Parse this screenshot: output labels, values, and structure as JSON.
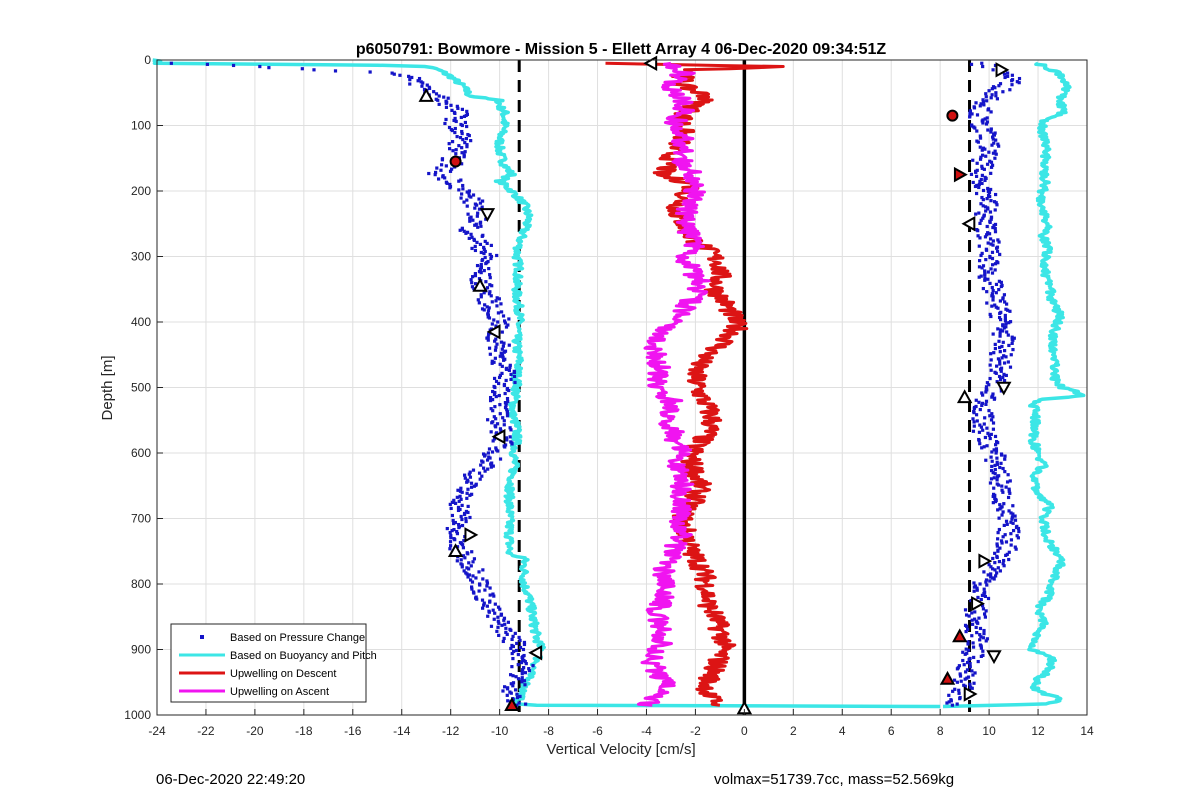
{
  "chart_data": {
    "type": "scatter",
    "title": "p6050791: Bowmore - Mission 5 - Ellett Array 4 06-Dec-2020 09:34:51Z",
    "xlabel": "Vertical Velocity [cm/s]",
    "ylabel": "Depth [m]",
    "xlim": [
      -24,
      14
    ],
    "ylim": [
      0,
      1000
    ],
    "y_reversed": true,
    "grid": true,
    "legend_position": "bottom-left",
    "xticks": [
      -24,
      -22,
      -20,
      -18,
      -16,
      -14,
      -12,
      -10,
      -8,
      -6,
      -4,
      -2,
      0,
      2,
      4,
      6,
      8,
      10,
      12,
      14
    ],
    "yticks": [
      0,
      100,
      200,
      300,
      400,
      500,
      600,
      700,
      800,
      900,
      1000
    ],
    "reference_lines": [
      {
        "x": -9.2,
        "style": "dashed",
        "color": "#000000"
      },
      {
        "x": 9.2,
        "style": "dashed",
        "color": "#000000"
      },
      {
        "x": 0,
        "style": "solid",
        "color": "#000000"
      }
    ],
    "series": [
      {
        "name": "Based on Pressure Change",
        "kind": "points",
        "color": "#1414C8",
        "branches": [
          {
            "depth": [
              5,
              10,
              20,
              30,
              45,
              60,
              80,
              100,
              120,
              140,
              160,
              175,
              185,
              200,
              220,
              240,
              260,
              280,
              300,
              320,
              340,
              360,
              380,
              400,
              420,
              440,
              460,
              480,
              500,
              520,
              540,
              560,
              580,
              600,
              620,
              640,
              660,
              680,
              700,
              720,
              740,
              760,
              780,
              800,
              820,
              840,
              860,
              880,
              900,
              920,
              940,
              960,
              975,
              985
            ],
            "velocity": [
              -23,
              -20,
              -14.5,
              -13.5,
              -13,
              -12.3,
              -11.7,
              -11.8,
              -11.5,
              -11.8,
              -12,
              -12.6,
              -11.8,
              -11.5,
              -11,
              -10.8,
              -11.2,
              -10.8,
              -10.5,
              -10.8,
              -10.8,
              -10.5,
              -10.3,
              -10,
              -10.2,
              -10,
              -9.9,
              -9.8,
              -9.8,
              -10,
              -10.1,
              -10,
              -9.8,
              -10.2,
              -10.5,
              -11.2,
              -11.5,
              -11.6,
              -11.6,
              -11.8,
              -11.8,
              -11.4,
              -11,
              -10.8,
              -10.6,
              -10.4,
              -10,
              -9.6,
              -9.1,
              -9,
              -9.2,
              -9.4,
              -9.5,
              -9.3
            ]
          },
          {
            "depth": [
              5,
              15,
              30,
              50,
              70,
              90,
              110,
              130,
              150,
              170,
              190,
              210,
              240,
              270,
              300,
              330,
              360,
              390,
              420,
              450,
              480,
              510,
              540,
              570,
              600,
              630,
              660,
              690,
              720,
              750,
              780,
              800,
              830,
              860,
              890,
              920,
              950,
              970,
              985
            ],
            "velocity": [
              9.5,
              10.5,
              11,
              10.3,
              9.8,
              9.5,
              9.8,
              10,
              9.8,
              9.6,
              9.8,
              10,
              9.8,
              10,
              10,
              10,
              10.2,
              10.5,
              10.6,
              10.5,
              10.4,
              10,
              9.7,
              9.8,
              10.2,
              10.4,
              10.5,
              10.6,
              10.8,
              10.7,
              10.2,
              9.8,
              9.5,
              9.4,
              9.5,
              9.2,
              9.0,
              8.8,
              8.5
            ]
          }
        ]
      },
      {
        "name": "Based on Buoyancy and Pitch",
        "kind": "line",
        "color": "#3CE6E6",
        "branches": [
          {
            "depth": [
              0,
              5,
              8,
              10,
              15,
              25,
              40,
              55,
              62,
              70,
              80,
              100,
              120,
              140,
              160,
              175,
              185,
              200,
              220,
              240,
              260,
              280,
              300,
              320,
              340,
              360,
              380,
              400,
              420,
              440,
              460,
              480,
              500,
              520,
              540,
              560,
              580,
              600,
              620,
              640,
              660,
              680,
              700,
              720,
              740,
              755,
              760,
              780,
              800,
              820,
              840,
              860,
              880,
              900,
              920,
              940,
              960,
              975,
              982,
              985,
              987
            ],
            "velocity": [
              -24,
              -24,
              -15,
              -13,
              -12.5,
              -12,
              -11.5,
              -11.2,
              -10,
              -10,
              -9.8,
              -9.8,
              -10,
              -10,
              -9.8,
              -9.5,
              -10,
              -9.5,
              -9,
              -8.8,
              -9,
              -9.2,
              -9.3,
              -9.2,
              -9.3,
              -9.3,
              -9.2,
              -9.2,
              -9.3,
              -9.3,
              -9.2,
              -9.3,
              -9.3,
              -9.4,
              -9.5,
              -9.3,
              -9.3,
              -9.4,
              -9.4,
              -9.5,
              -9.6,
              -9.6,
              -9.6,
              -9.6,
              -9.6,
              -9.6,
              -9,
              -9,
              -9,
              -8.8,
              -8.7,
              -8.6,
              -8.5,
              -8.3,
              -8.5,
              -8.8,
              -9,
              -9.2,
              -9.5,
              -8.5,
              8
            ]
          },
          {
            "depth": [
              987,
              983,
              975,
              965,
              955,
              945,
              930,
              915,
              900,
              880,
              860,
              840,
              820,
              800,
              780,
              760,
              740,
              720,
              700,
              680,
              660,
              640,
              620,
              600,
              580,
              560,
              540,
              525,
              518,
              512,
              500,
              490,
              470,
              450,
              430,
              410,
              390,
              370,
              350,
              330,
              310,
              290,
              270,
              250,
              230,
              210,
              190,
              170,
              150,
              130,
              110,
              95,
              80,
              60,
              40,
              20,
              5
            ],
            "velocity": [
              8,
              12.5,
              13,
              12,
              11.8,
              12,
              12.5,
              12.6,
              11.8,
              11.9,
              12.2,
              12,
              12.4,
              12.6,
              12.8,
              13,
              12.5,
              12.3,
              12.2,
              12.5,
              12,
              11.8,
              12.2,
              12,
              11.8,
              11.9,
              11.9,
              11.8,
              12.2,
              14,
              13,
              12.7,
              12.7,
              12.6,
              12.6,
              12.7,
              12.9,
              12.6,
              12.5,
              12.3,
              12.3,
              12.4,
              12.2,
              12.4,
              12.2,
              12.1,
              12.3,
              12.2,
              12.3,
              12.3,
              12.2,
              12.2,
              13,
              12.9,
              13.2,
              12.8,
              12
            ]
          }
        ]
      },
      {
        "name": "Upwelling on Descent",
        "kind": "line",
        "color": "#DC1414",
        "branches": [
          {
            "depth": [
              5,
              10,
              15,
              25,
              40,
              55,
              70,
              85,
              100,
              120,
              140,
              160,
              175,
              190,
              210,
              230,
              250,
              270,
              290,
              310,
              330,
              350,
              370,
              390,
              410,
              430,
              450,
              470,
              490,
              510,
              530,
              550,
              570,
              590,
              610,
              630,
              650,
              670,
              690,
              710,
              730,
              750,
              770,
              790,
              810,
              830,
              850,
              870,
              890,
              910,
              930,
              950,
              970,
              985
            ],
            "velocity": [
              -6,
              2,
              -2,
              -2.5,
              -2.5,
              -1.5,
              -2,
              -2.5,
              -2.5,
              -2.5,
              -3,
              -3,
              -3.5,
              -2,
              -2.5,
              -2.8,
              -2.5,
              -2.2,
              -1.5,
              -1,
              -1,
              -1.2,
              -0.8,
              -0.5,
              -0.3,
              -0.8,
              -1.5,
              -2,
              -2,
              -1.8,
              -1.5,
              -1.3,
              -1.5,
              -2,
              -2.2,
              -2,
              -1.8,
              -2,
              -2.5,
              -2.5,
              -2.3,
              -2.2,
              -1.8,
              -1.6,
              -1.5,
              -1.5,
              -1.2,
              -1,
              -0.8,
              -1,
              -1.2,
              -1.5,
              -1.5,
              -1
            ]
          }
        ]
      },
      {
        "name": "Upwelling on Ascent",
        "kind": "line",
        "color": "#F014F0",
        "branches": [
          {
            "depth": [
              985,
              970,
              955,
              940,
              920,
              900,
              880,
              860,
              840,
              820,
              800,
              780,
              760,
              740,
              720,
              700,
              680,
              660,
              640,
              620,
              600,
              580,
              560,
              540,
              520,
              500,
              480,
              460,
              440,
              420,
              400,
              380,
              360,
              340,
              320,
              300,
              280,
              260,
              240,
              220,
              200,
              180,
              160,
              140,
              120,
              100,
              80,
              60,
              40,
              20,
              5
            ],
            "velocity": [
              -4,
              -3.5,
              -3.2,
              -3.5,
              -3.8,
              -3.5,
              -3.3,
              -3.5,
              -3.6,
              -3.2,
              -3.2,
              -3.3,
              -3,
              -2.8,
              -2.5,
              -2.8,
              -2.5,
              -2.6,
              -2.5,
              -2.7,
              -2.5,
              -2.8,
              -3,
              -3.2,
              -3,
              -3.5,
              -3.5,
              -3.5,
              -3.8,
              -3.5,
              -3,
              -2.5,
              -2,
              -1.8,
              -2.2,
              -2.5,
              -2,
              -2.3,
              -2.5,
              -2.2,
              -2,
              -2,
              -2.5,
              -2.5,
              -2.5,
              -3,
              -2.5,
              -2.5,
              -3,
              -2.5,
              -3
            ]
          }
        ]
      }
    ],
    "marker_points": [
      {
        "x": -13,
        "depth": 55,
        "marker": "up-triangle"
      },
      {
        "x": -11.8,
        "depth": 155,
        "marker": "circle"
      },
      {
        "x": -10.5,
        "depth": 235,
        "marker": "down-triangle"
      },
      {
        "x": -10.8,
        "depth": 345,
        "marker": "up-triangle"
      },
      {
        "x": -10.2,
        "depth": 415,
        "marker": "left-triangle"
      },
      {
        "x": -10,
        "depth": 575,
        "marker": "left-triangle"
      },
      {
        "x": -11.2,
        "depth": 725,
        "marker": "right-triangle"
      },
      {
        "x": -11.8,
        "depth": 750,
        "marker": "up-triangle"
      },
      {
        "x": -8.5,
        "depth": 905,
        "marker": "left-triangle"
      },
      {
        "x": -9.5,
        "depth": 985,
        "marker": "filled-up-triangle"
      },
      {
        "x": -3.8,
        "depth": 5,
        "marker": "left-triangle"
      },
      {
        "x": 0,
        "depth": 990,
        "marker": "up-triangle"
      },
      {
        "x": 10.5,
        "depth": 15,
        "marker": "right-triangle"
      },
      {
        "x": 8.5,
        "depth": 85,
        "marker": "circle"
      },
      {
        "x": 8.8,
        "depth": 175,
        "marker": "filled-right-triangle"
      },
      {
        "x": 9.2,
        "depth": 250,
        "marker": "left-triangle"
      },
      {
        "x": 10.6,
        "depth": 500,
        "marker": "down-triangle"
      },
      {
        "x": 9,
        "depth": 515,
        "marker": "up-triangle"
      },
      {
        "x": 9.8,
        "depth": 765,
        "marker": "right-triangle"
      },
      {
        "x": 9.5,
        "depth": 830,
        "marker": "right-triangle"
      },
      {
        "x": 8.8,
        "depth": 880,
        "marker": "filled-up-triangle"
      },
      {
        "x": 10.2,
        "depth": 910,
        "marker": "down-triangle"
      },
      {
        "x": 8.3,
        "depth": 945,
        "marker": "filled-up-triangle"
      },
      {
        "x": 9.2,
        "depth": 968,
        "marker": "right-triangle"
      }
    ]
  },
  "footer": {
    "left": "06-Dec-2020 22:49:20",
    "right": "volmax=51739.7cc, mass=52.569kg"
  }
}
